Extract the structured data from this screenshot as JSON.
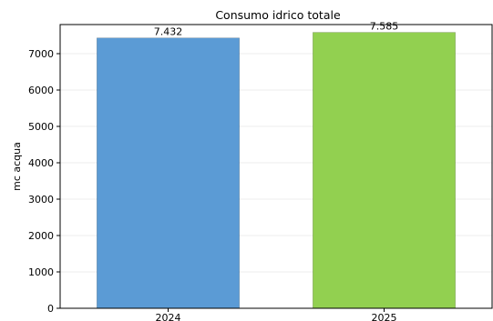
{
  "chart_data": {
    "type": "bar",
    "title": "Consumo idrico totale",
    "xlabel": "",
    "ylabel": "mc acqua",
    "categories": [
      "2024",
      "2025"
    ],
    "values": [
      7432,
      7585
    ],
    "data_labels": [
      "7.432",
      "7.585"
    ],
    "colors": [
      "#5b9bd5",
      "#92d050"
    ],
    "ylim": [
      0,
      7800
    ],
    "yticks": [
      0,
      1000,
      2000,
      3000,
      4000,
      5000,
      6000,
      7000
    ],
    "ytick_labels": [
      "0",
      "1000",
      "2000",
      "3000",
      "4000",
      "5000",
      "6000",
      "7000"
    ],
    "grid": true,
    "legend": "none"
  }
}
